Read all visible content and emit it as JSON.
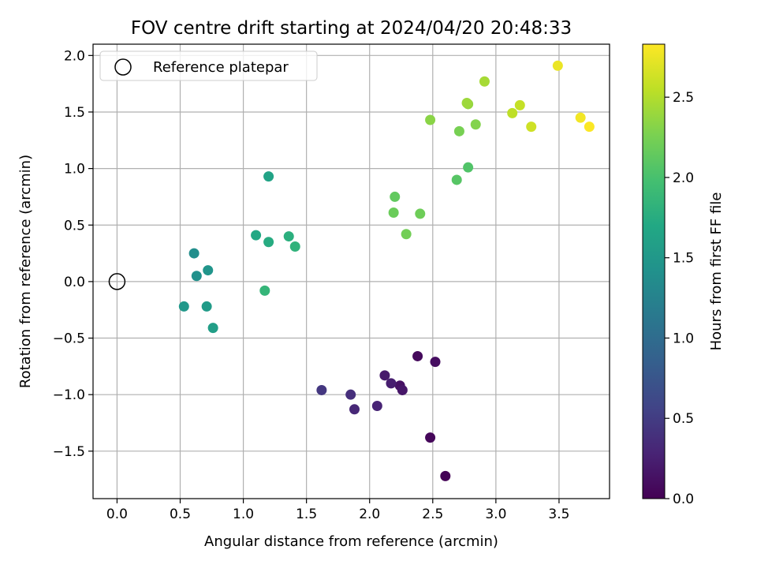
{
  "chart_data": {
    "type": "scatter",
    "title": "FOV centre drift starting at 2024/04/20 20:48:33",
    "xlabel": "Angular distance from reference (arcmin)",
    "ylabel": "Rotation from reference (arcmin)",
    "xlim": [
      -0.19,
      3.9
    ],
    "ylim": [
      -1.92,
      2.1
    ],
    "xticks": [
      0.0,
      0.5,
      1.0,
      1.5,
      2.0,
      2.5,
      3.0,
      3.5
    ],
    "xtick_labels": [
      "0.0",
      "0.5",
      "1.0",
      "1.5",
      "2.0",
      "2.5",
      "3.0",
      "3.5"
    ],
    "yticks": [
      -1.5,
      -1.0,
      -0.5,
      0.0,
      0.5,
      1.0,
      1.5,
      2.0
    ],
    "ytick_labels": [
      "−1.5",
      "−1.0",
      "−0.5",
      "0.0",
      "0.5",
      "1.0",
      "1.5",
      "2.0"
    ],
    "grid": true,
    "legend": {
      "position": "top-left",
      "entries": [
        "Reference platepar"
      ]
    },
    "reference_point": {
      "x": 0.0,
      "y": 0.0,
      "label": "Reference platepar"
    },
    "colorbar": {
      "label": "Hours from first FF file",
      "colormap": "viridis",
      "range": [
        0.0,
        2.83
      ],
      "ticks": [
        0.0,
        0.5,
        1.0,
        1.5,
        2.0,
        2.5
      ],
      "tick_labels": [
        "0.0",
        "0.5",
        "1.0",
        "1.5",
        "2.0",
        "2.5"
      ]
    },
    "points": [
      {
        "x": 2.6,
        "y": -1.72,
        "c": 0.02
      },
      {
        "x": 2.48,
        "y": -1.38,
        "c": 0.05
      },
      {
        "x": 2.38,
        "y": -0.66,
        "c": 0.07
      },
      {
        "x": 2.52,
        "y": -0.71,
        "c": 0.1
      },
      {
        "x": 2.24,
        "y": -0.92,
        "c": 0.13
      },
      {
        "x": 2.26,
        "y": -0.96,
        "c": 0.17
      },
      {
        "x": 2.12,
        "y": -0.83,
        "c": 0.2
      },
      {
        "x": 2.17,
        "y": -0.9,
        "c": 0.23
      },
      {
        "x": 2.06,
        "y": -1.1,
        "c": 0.28
      },
      {
        "x": 1.88,
        "y": -1.13,
        "c": 0.32
      },
      {
        "x": 1.85,
        "y": -1.0,
        "c": 0.38
      },
      {
        "x": 1.62,
        "y": -0.96,
        "c": 0.45
      },
      {
        "x": 0.61,
        "y": 0.25,
        "c": 1.38
      },
      {
        "x": 0.63,
        "y": 0.05,
        "c": 1.42
      },
      {
        "x": 0.72,
        "y": 0.1,
        "c": 1.46
      },
      {
        "x": 0.53,
        "y": -0.22,
        "c": 1.5
      },
      {
        "x": 0.71,
        "y": -0.22,
        "c": 1.54
      },
      {
        "x": 0.76,
        "y": -0.41,
        "c": 1.58
      },
      {
        "x": 1.2,
        "y": 0.93,
        "c": 1.64
      },
      {
        "x": 1.1,
        "y": 0.41,
        "c": 1.7
      },
      {
        "x": 1.2,
        "y": 0.35,
        "c": 1.74
      },
      {
        "x": 1.36,
        "y": 0.4,
        "c": 1.78
      },
      {
        "x": 1.41,
        "y": 0.31,
        "c": 1.82
      },
      {
        "x": 1.17,
        "y": -0.08,
        "c": 1.86
      },
      {
        "x": 2.78,
        "y": 1.01,
        "c": 2.05
      },
      {
        "x": 2.69,
        "y": 0.9,
        "c": 2.08
      },
      {
        "x": 2.2,
        "y": 0.75,
        "c": 2.14
      },
      {
        "x": 2.19,
        "y": 0.61,
        "c": 2.18
      },
      {
        "x": 2.4,
        "y": 0.6,
        "c": 2.2
      },
      {
        "x": 2.29,
        "y": 0.42,
        "c": 2.22
      },
      {
        "x": 2.71,
        "y": 1.33,
        "c": 2.25
      },
      {
        "x": 2.84,
        "y": 1.39,
        "c": 2.3
      },
      {
        "x": 2.48,
        "y": 1.43,
        "c": 2.33
      },
      {
        "x": 2.78,
        "y": 1.57,
        "c": 2.37
      },
      {
        "x": 2.77,
        "y": 1.58,
        "c": 2.41
      },
      {
        "x": 2.91,
        "y": 1.77,
        "c": 2.45
      },
      {
        "x": 3.13,
        "y": 1.49,
        "c": 2.55
      },
      {
        "x": 3.19,
        "y": 1.56,
        "c": 2.58
      },
      {
        "x": 3.28,
        "y": 1.37,
        "c": 2.62
      },
      {
        "x": 3.49,
        "y": 1.91,
        "c": 2.75
      },
      {
        "x": 3.67,
        "y": 1.45,
        "c": 2.78
      },
      {
        "x": 3.74,
        "y": 1.37,
        "c": 2.82
      }
    ]
  }
}
